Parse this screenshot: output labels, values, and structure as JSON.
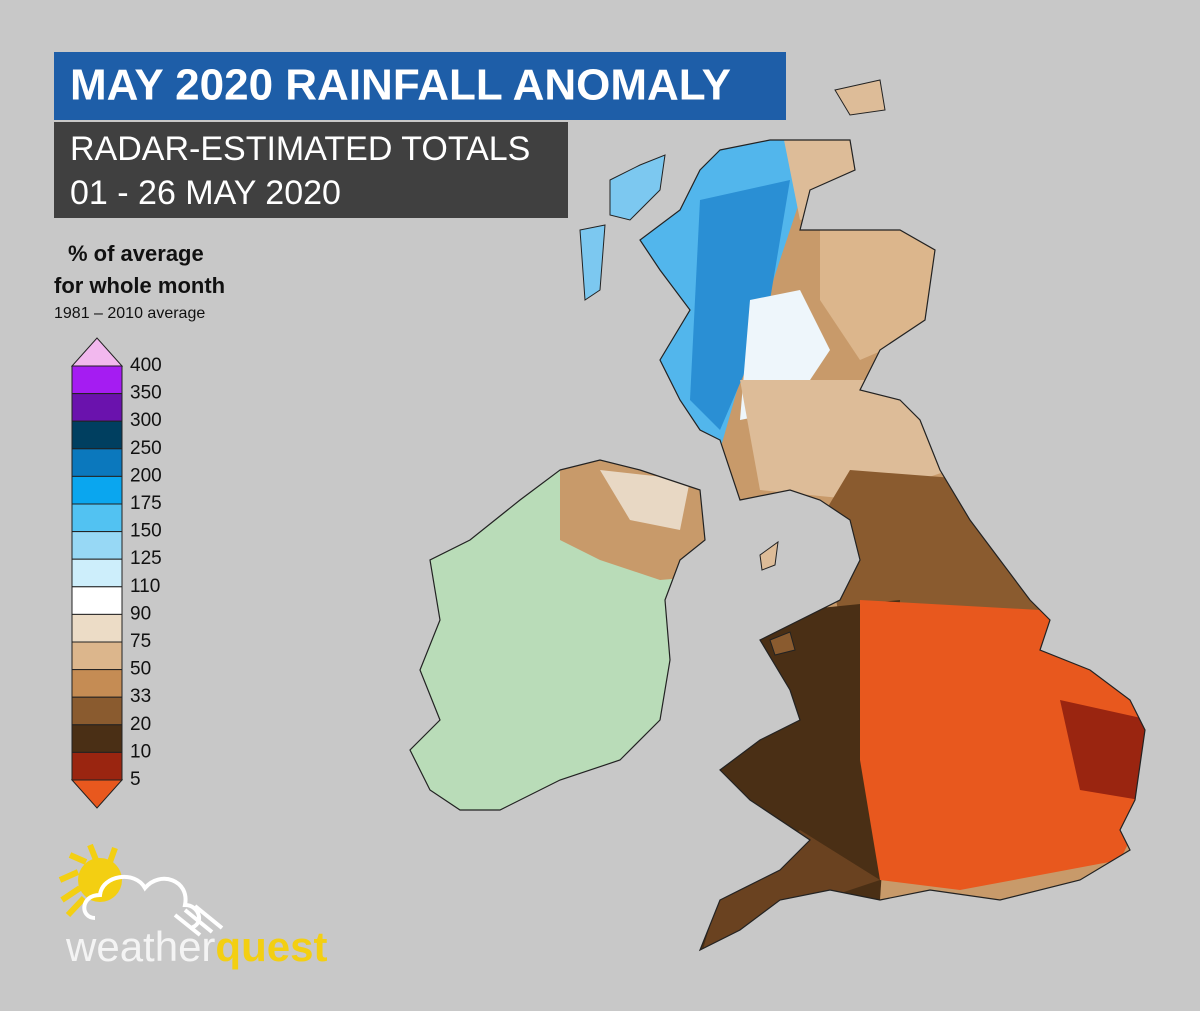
{
  "title": "MAY 2020 RAINFALL ANOMALY",
  "subtitle": [
    "RADAR-ESTIMATED TOTALS",
    "01 - 26 MAY 2020"
  ],
  "legend": {
    "title": [
      "% of average",
      "for whole month"
    ],
    "note": "1981 – 2010 average",
    "ticks": [
      400,
      350,
      300,
      250,
      200,
      175,
      150,
      125,
      110,
      90,
      75,
      50,
      33,
      20,
      10,
      5
    ],
    "colors": {
      "above": "#f2b8ee",
      "bins": [
        "#a51cf2",
        "#6a12ad",
        "#003f60",
        "#0b78bd",
        "#0aa6ef",
        "#52c2f2",
        "#97d8f5",
        "#cdeefb",
        "#ffffff",
        "#ecdcc6",
        "#dcb68c",
        "#c58c54",
        "#8a5b2f",
        "#4a2f15",
        "#9a2510"
      ],
      "below": "#e8581e"
    }
  },
  "logo": {
    "word": "weather",
    "accent": "quest"
  }
}
